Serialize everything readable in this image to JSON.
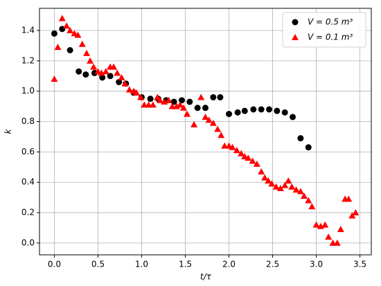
{
  "chart_data": {
    "type": "scatter",
    "x_label": "t/τ",
    "y_label": "k",
    "xlim": [
      -0.17,
      3.63
    ],
    "ylim": [
      -0.078,
      1.546
    ],
    "xticks": [
      {
        "value": 0,
        "label": "0.0"
      },
      0.5,
      {
        "value": 1,
        "label": "1.0"
      },
      1.5,
      {
        "value": 2,
        "label": "2.0"
      },
      2.5,
      {
        "value": 3,
        "label": "3.0"
      },
      3.5
    ],
    "yticks": [
      {
        "value": 0,
        "label": "0.0"
      },
      0.2,
      0.4,
      0.6,
      0.8,
      {
        "value": 1,
        "label": "1.0"
      },
      1.2,
      1.4
    ],
    "grid": true,
    "legend": "upper right",
    "series": [
      {
        "name": "V = 0.5 m³",
        "color": "#000000",
        "marker": "circle",
        "x": [
          0,
          0.09,
          0.18,
          0.28,
          0.36,
          0.46,
          0.55,
          0.64,
          0.74,
          0.82,
          0.91,
          1.0,
          1.1,
          1.19,
          1.28,
          1.37,
          1.46,
          1.55,
          1.64,
          1.73,
          1.82,
          1.9,
          2.0,
          2.1,
          2.18,
          2.28,
          2.37,
          2.46,
          2.55,
          2.64,
          2.73,
          2.82,
          2.91
        ],
        "values": [
          1.38,
          1.41,
          1.27,
          1.13,
          1.11,
          1.12,
          1.09,
          1.1,
          1.06,
          1.05,
          0.99,
          0.96,
          0.95,
          0.95,
          0.94,
          0.93,
          0.94,
          0.93,
          0.89,
          0.89,
          0.96,
          0.96,
          0.85,
          0.86,
          0.87,
          0.88,
          0.88,
          0.88,
          0.87,
          0.86,
          0.83,
          0.69,
          0.63
        ]
      },
      {
        "name": "V = 0.1 m³",
        "color": "#ff0000",
        "marker": "triangle",
        "x": [
          0,
          0.04,
          0.09,
          0.14,
          0.18,
          0.23,
          0.27,
          0.32,
          0.37,
          0.41,
          0.45,
          0.5,
          0.54,
          0.59,
          0.64,
          0.68,
          0.72,
          0.77,
          0.81,
          0.86,
          0.91,
          0.94,
          0.99,
          1.03,
          1.08,
          1.13,
          1.18,
          1.21,
          1.26,
          1.31,
          1.35,
          1.4,
          1.44,
          1.48,
          1.52,
          1.6,
          1.68,
          1.73,
          1.77,
          1.82,
          1.87,
          1.91,
          1.95,
          2.0,
          2.04,
          2.09,
          2.14,
          2.18,
          2.22,
          2.27,
          2.32,
          2.37,
          2.41,
          2.45,
          2.49,
          2.54,
          2.59,
          2.64,
          2.68,
          2.72,
          2.77,
          2.82,
          2.86,
          2.91,
          2.95,
          3.0,
          3.05,
          3.1,
          3.14,
          3.19,
          3.24,
          3.28,
          3.33,
          3.37,
          3.41,
          3.45
        ],
        "values": [
          1.08,
          1.29,
          1.48,
          1.43,
          1.4,
          1.38,
          1.37,
          1.31,
          1.25,
          1.2,
          1.16,
          1.13,
          1.12,
          1.13,
          1.16,
          1.16,
          1.12,
          1.09,
          1.05,
          1.01,
          1.0,
          0.99,
          0.96,
          0.91,
          0.91,
          0.91,
          0.96,
          0.94,
          0.93,
          0.94,
          0.9,
          0.9,
          0.91,
          0.89,
          0.85,
          0.78,
          0.96,
          0.83,
          0.81,
          0.79,
          0.75,
          0.71,
          0.64,
          0.64,
          0.63,
          0.61,
          0.59,
          0.57,
          0.56,
          0.54,
          0.52,
          0.47,
          0.43,
          0.41,
          0.39,
          0.37,
          0.36,
          0.38,
          0.41,
          0.37,
          0.35,
          0.34,
          0.31,
          0.28,
          0.24,
          0.12,
          0.11,
          0.12,
          0.04,
          0,
          0,
          0.09,
          0.29,
          0.29,
          0.18,
          0.2
        ]
      }
    ]
  }
}
